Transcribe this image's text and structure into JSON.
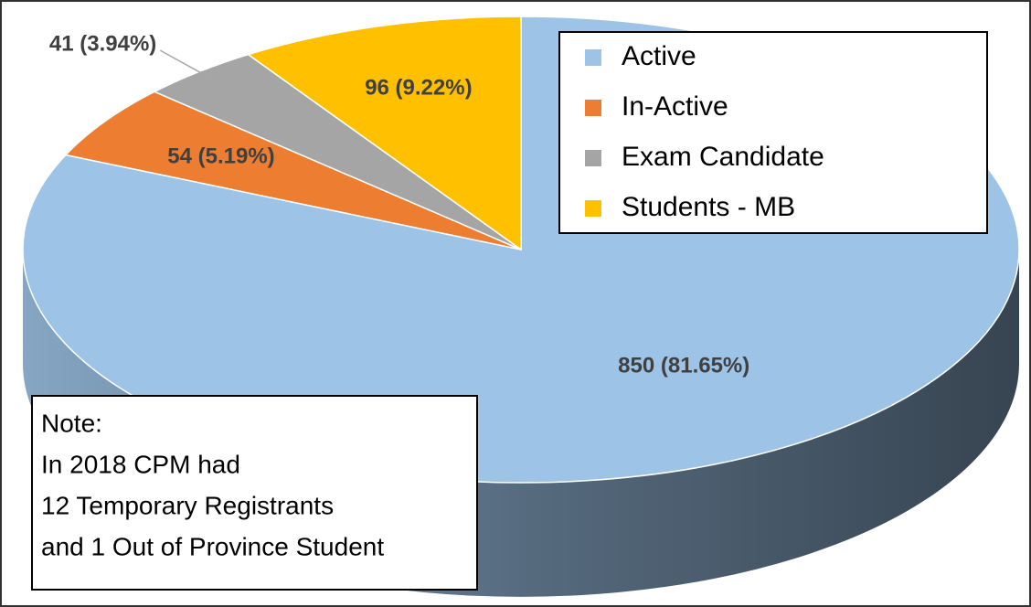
{
  "chart_data": {
    "type": "pie",
    "three_d": true,
    "categories": [
      "Active",
      "In-Active",
      "Exam Candidate",
      "Students - MB"
    ],
    "values": [
      850,
      54,
      41,
      96
    ],
    "value_labels": [
      "850 (81.65%)",
      "54 (5.19%)",
      "41 (3.94%)",
      "96 (9.22%)"
    ],
    "colors": [
      "#9dc3e6",
      "#ed7d31",
      "#a5a5a5",
      "#ffc000"
    ],
    "legend": "top-right",
    "annotation": [
      "Note:",
      "In 2018 CPM had",
      "12 Temporary Registrants",
      "and 1 Out of Province Student"
    ]
  }
}
